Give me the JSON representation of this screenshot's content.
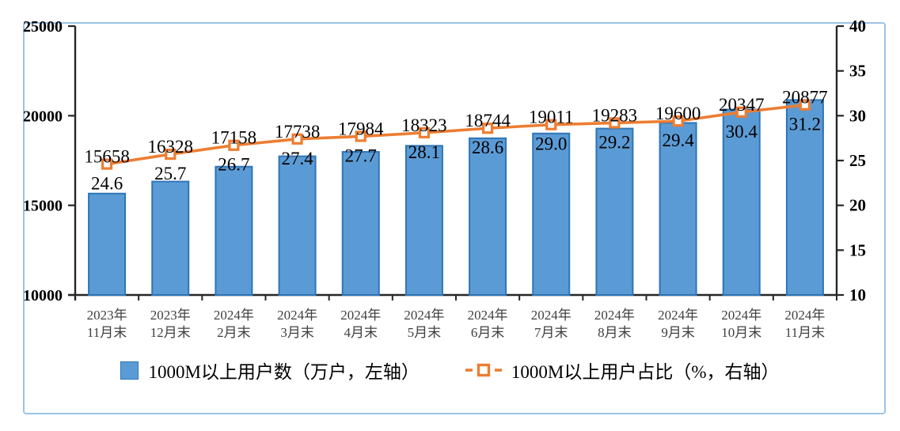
{
  "chart_data": {
    "type": "bar",
    "subtype": "combo-bar-line-dual-axis",
    "categories": [
      "2023年\n11月末",
      "2023年\n12月末",
      "2024年\n2月末",
      "2024年\n3月末",
      "2024年\n4月末",
      "2024年\n5月末",
      "2024年\n6月末",
      "2024年\n7月末",
      "2024年\n8月末",
      "2024年\n9月末",
      "2024年\n10月末",
      "2024年\n11月末"
    ],
    "series": [
      {
        "name": "1000M以上用户数（万户，左轴）",
        "type": "bar",
        "axis": "left",
        "values": [
          15658,
          16328,
          17158,
          17738,
          17984,
          18323,
          18744,
          19011,
          19283,
          19600,
          20347,
          20877
        ]
      },
      {
        "name": "1000M以上用户占比（%，右轴）",
        "type": "line",
        "axis": "right",
        "values": [
          "24.6",
          "25.7",
          "26.7",
          "27.4",
          "27.7",
          "28.1",
          "28.6",
          "29.0",
          "29.2",
          "29.4",
          "30.4",
          "31.2"
        ]
      }
    ],
    "left_axis": {
      "min": 10000,
      "max": 25000,
      "step": 5000,
      "ticks": [
        10000,
        15000,
        20000,
        25000
      ]
    },
    "right_axis": {
      "min": 10,
      "max": 40,
      "step": 5,
      "ticks": [
        10,
        15,
        20,
        25,
        30,
        35,
        40
      ]
    },
    "grid": false,
    "legend_position": "bottom",
    "title": ""
  },
  "colors": {
    "bar_fill": "#5B9BD5",
    "bar_stroke": "#2E75B6",
    "line": "#ED7D31",
    "marker_fill": "#FFFFFF",
    "axis_line": "#262626",
    "tick_label": "#000000",
    "x_label": "#404040",
    "data_label": "#000000",
    "frame_border": "#9DC3E6",
    "background": "#FFFFFF"
  },
  "legend": {
    "bar_label": "1000M以上用户数（万户，左轴）",
    "line_label": "1000M以上用户占比（%，右轴）"
  }
}
